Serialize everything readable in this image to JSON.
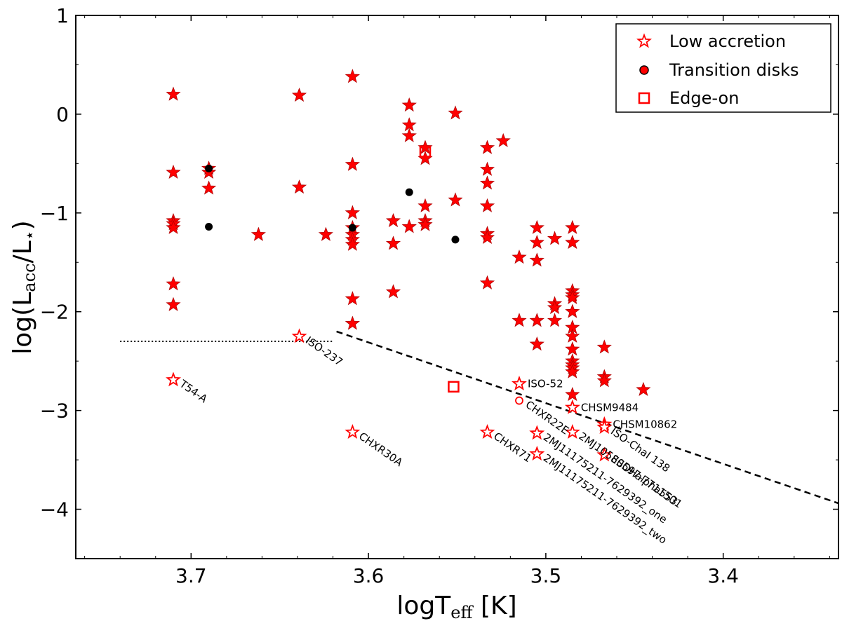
{
  "chart_data": {
    "type": "scatter",
    "xlabel_main": "logT",
    "xlabel_sub": "eff",
    "xlabel_unit": " [K]",
    "ylabel_pre": "log(L",
    "ylabel_sub1": "acc",
    "ylabel_mid": "/L",
    "ylabel_sub2": "⋆",
    "ylabel_post": ")",
    "xlim": [
      3.765,
      3.335
    ],
    "ylim": [
      -4.5,
      1.0
    ],
    "x_ticks": [
      3.7,
      3.6,
      3.5,
      3.4
    ],
    "x_tick_labels": [
      "3.7",
      "3.6",
      "3.5",
      "3.4"
    ],
    "y_ticks": [
      1,
      0,
      -1,
      -2,
      -3,
      -4
    ],
    "y_tick_labels": [
      "1",
      "0",
      "−1",
      "−2",
      "−3",
      "−4"
    ],
    "colors": {
      "marker": "#ff0000",
      "edge": "#b00000",
      "line": "#000000"
    },
    "legend": {
      "position": "top-right",
      "entries": [
        {
          "label": "Low accretion",
          "marker": "open-star"
        },
        {
          "label": "Transition disks",
          "marker": "dot"
        },
        {
          "label": "Edge-on",
          "marker": "open-square"
        }
      ]
    },
    "accretors": [
      [
        3.71,
        0.2
      ],
      [
        3.71,
        -0.59
      ],
      [
        3.71,
        -1.08
      ],
      [
        3.71,
        -1.11
      ],
      [
        3.71,
        -1.15
      ],
      [
        3.71,
        -1.72
      ],
      [
        3.71,
        -1.93
      ],
      [
        3.69,
        -0.55
      ],
      [
        3.69,
        -0.59
      ],
      [
        3.69,
        -0.75
      ],
      [
        3.662,
        -1.22
      ],
      [
        3.639,
        0.19
      ],
      [
        3.639,
        -0.74
      ],
      [
        3.624,
        -1.22
      ],
      [
        3.609,
        0.38
      ],
      [
        3.609,
        -0.51
      ],
      [
        3.609,
        -1.0
      ],
      [
        3.609,
        -1.15
      ],
      [
        3.609,
        -1.22
      ],
      [
        3.609,
        -1.27
      ],
      [
        3.609,
        -1.32
      ],
      [
        3.609,
        -1.87
      ],
      [
        3.609,
        -2.12
      ],
      [
        3.586,
        -1.08
      ],
      [
        3.586,
        -1.31
      ],
      [
        3.586,
        -1.8
      ],
      [
        3.577,
        0.09
      ],
      [
        3.577,
        -0.11
      ],
      [
        3.577,
        -0.22
      ],
      [
        3.577,
        -1.14
      ],
      [
        3.568,
        -0.34
      ],
      [
        3.568,
        -0.45
      ],
      [
        3.568,
        -0.93
      ],
      [
        3.568,
        -1.08
      ],
      [
        3.568,
        -1.12
      ],
      [
        3.551,
        0.01
      ],
      [
        3.551,
        -0.87
      ],
      [
        3.533,
        -0.34
      ],
      [
        3.533,
        -0.56
      ],
      [
        3.533,
        -0.7
      ],
      [
        3.533,
        -0.93
      ],
      [
        3.533,
        -1.21
      ],
      [
        3.533,
        -1.25
      ],
      [
        3.533,
        -1.71
      ],
      [
        3.524,
        -0.27
      ],
      [
        3.515,
        -1.45
      ],
      [
        3.515,
        -2.09
      ],
      [
        3.505,
        -1.15
      ],
      [
        3.505,
        -1.3
      ],
      [
        3.505,
        -1.48
      ],
      [
        3.505,
        -2.09
      ],
      [
        3.505,
        -2.33
      ],
      [
        3.495,
        -1.26
      ],
      [
        3.495,
        -1.92
      ],
      [
        3.495,
        -1.96
      ],
      [
        3.495,
        -2.09
      ],
      [
        3.485,
        -1.15
      ],
      [
        3.485,
        -1.3
      ],
      [
        3.485,
        -1.79
      ],
      [
        3.485,
        -1.83
      ],
      [
        3.485,
        -1.86
      ],
      [
        3.485,
        -2.0
      ],
      [
        3.485,
        -2.16
      ],
      [
        3.485,
        -2.25
      ],
      [
        3.485,
        -2.38
      ],
      [
        3.485,
        -2.5
      ],
      [
        3.485,
        -2.54
      ],
      [
        3.485,
        -2.57
      ],
      [
        3.485,
        -2.61
      ],
      [
        3.485,
        -2.84
      ],
      [
        3.467,
        -2.36
      ],
      [
        3.467,
        -2.66
      ],
      [
        3.467,
        -2.7
      ],
      [
        3.445,
        -2.79
      ]
    ],
    "transition_disks": [
      [
        3.69,
        -0.55
      ],
      [
        3.69,
        -1.14
      ],
      [
        3.609,
        -1.15
      ],
      [
        3.577,
        -0.79
      ],
      [
        3.551,
        -1.27
      ]
    ],
    "edge_on": [
      [
        3.568,
        -0.38
      ],
      [
        3.552,
        -2.76
      ]
    ],
    "low_accretors": [
      {
        "x": 3.71,
        "y": -2.69,
        "label": "T54-A",
        "rotate": true
      },
      {
        "x": 3.639,
        "y": -2.25,
        "label": "ISO-237",
        "rotate": true
      },
      {
        "x": 3.609,
        "y": -3.22,
        "label": "CHXR30A",
        "rotate": true
      },
      {
        "x": 3.533,
        "y": -3.22,
        "label": "CHXR71",
        "rotate": true
      },
      {
        "x": 3.515,
        "y": -2.73,
        "label": "ISO-52",
        "rotate": false
      },
      {
        "x": 3.485,
        "y": -2.97,
        "label": "CHSM9484",
        "rotate": false
      },
      {
        "x": 3.467,
        "y": -3.14,
        "label": "CHSM10862",
        "rotate": false
      },
      {
        "x": 3.467,
        "y": -3.17,
        "label": "ISO-ChaI 138",
        "rotate": true
      },
      {
        "x": 3.485,
        "y": -3.22,
        "label": "2MJ10580597-7711501",
        "rotate": true
      },
      {
        "x": 3.467,
        "y": -3.45,
        "label": "ESOHalpha553",
        "rotate": true
      },
      {
        "x": 3.505,
        "y": -3.23,
        "label": "2MJ11175211-7629392_one",
        "rotate": true
      },
      {
        "x": 3.505,
        "y": -3.44,
        "label": "2MJ11175211-7629392_two",
        "rotate": true
      }
    ],
    "open_transition": [
      {
        "x": 3.515,
        "y": -2.9,
        "label": "CHXR22E",
        "rotate": true
      }
    ],
    "dotted_line": [
      [
        3.74,
        -2.3
      ],
      [
        3.62,
        -2.3
      ]
    ],
    "dashed_line": [
      [
        3.618,
        -2.2
      ],
      [
        3.335,
        -3.94
      ]
    ]
  }
}
